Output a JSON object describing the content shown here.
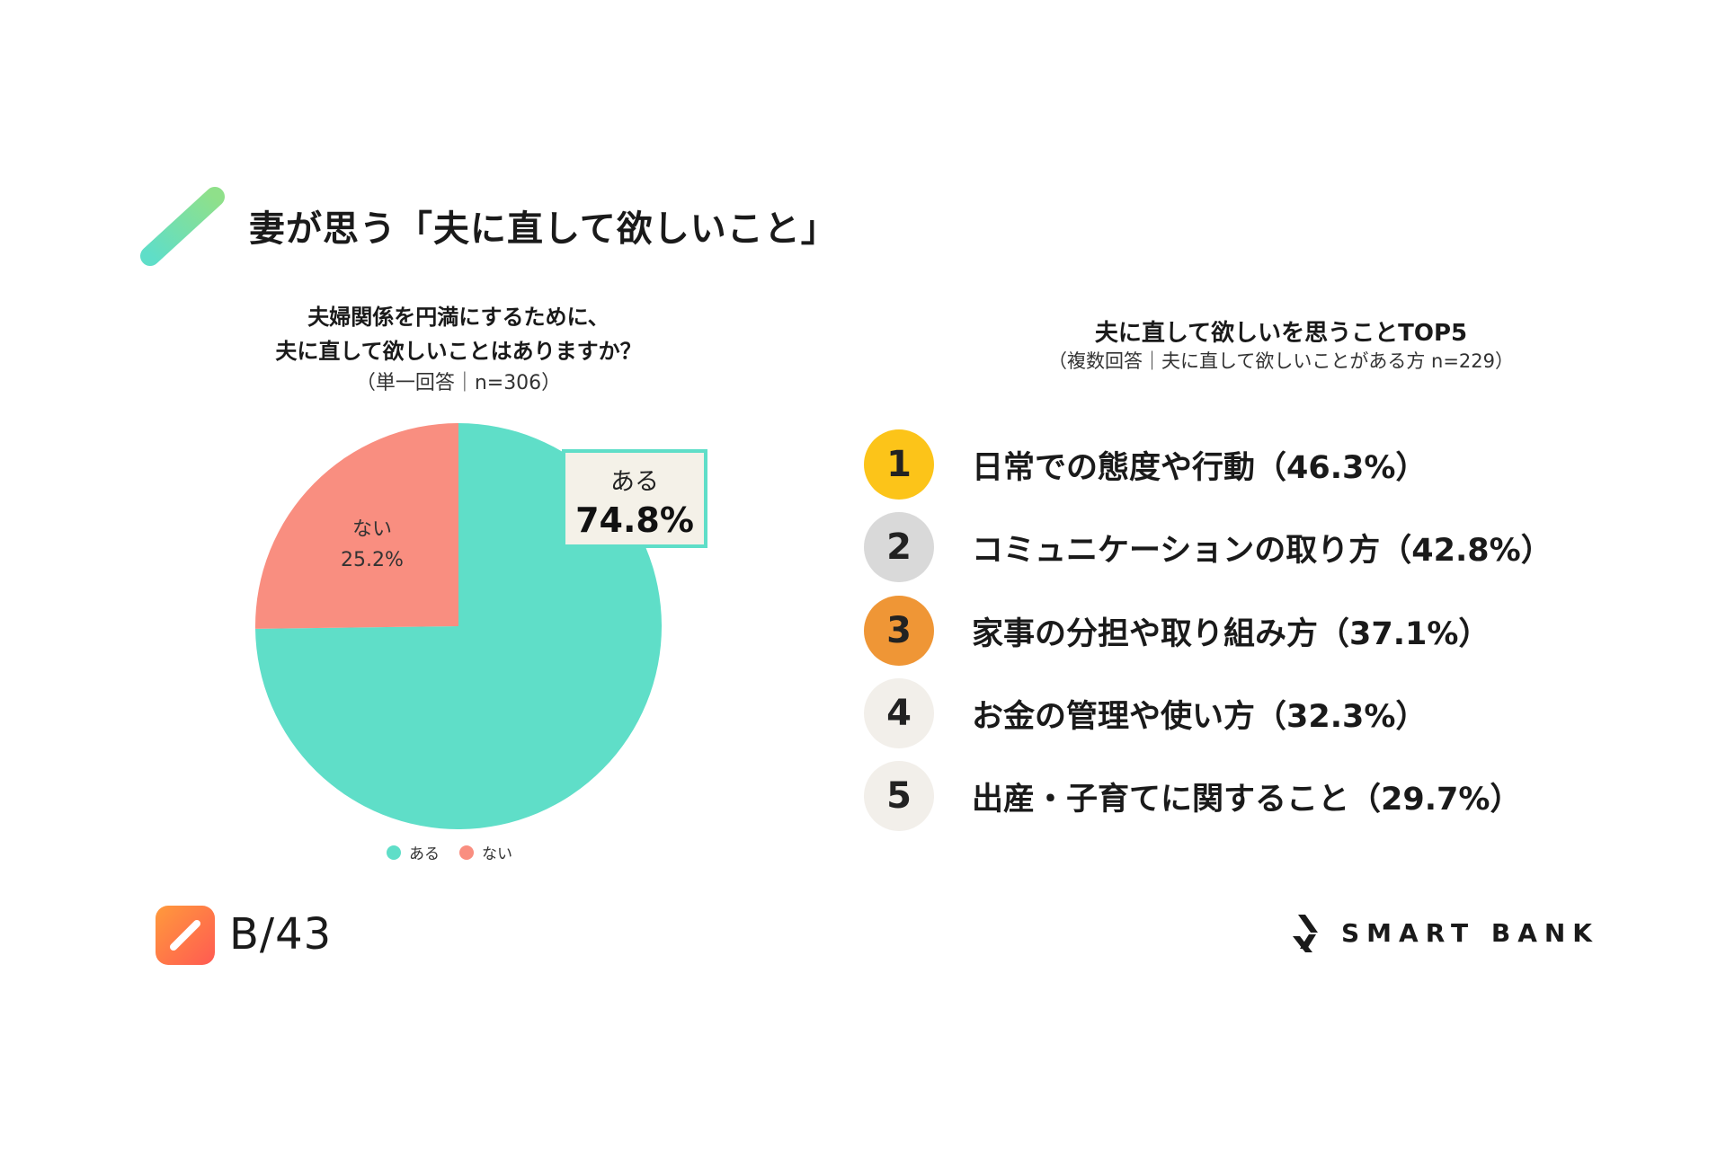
{
  "header": {
    "title": "妻が思う「夫に直して欲しいこと」",
    "accent_color": "#5fdec8"
  },
  "left_chart": {
    "question_line1": "夫婦関係を円満にするために、",
    "question_line2": "夫に直して欲しいことはありますか？",
    "note": "（単一回答｜n=306）",
    "callout_label": "ある",
    "callout_value": "74.8%",
    "no_label": "ない",
    "no_value": "25.2%",
    "legend": [
      {
        "label": "ある",
        "color": "#5fdec8"
      },
      {
        "label": "ない",
        "color": "#f98e80"
      }
    ]
  },
  "right_list": {
    "title": "夫に直して欲しいを思うことTOP5",
    "note": "（複数回答｜夫に直して欲しいことがある方 n=229）",
    "items": [
      {
        "rank": "1",
        "text": "日常での態度や行動（46.3%）",
        "color": "#fcc419"
      },
      {
        "rank": "2",
        "text": "コミュニケーションの取り方（42.8%）",
        "color": "#d9d9d9"
      },
      {
        "rank": "3",
        "text": "家事の分担や取り組み方（37.1%）",
        "color": "#ef9636"
      },
      {
        "rank": "4",
        "text": "お金の管理や使い方（32.3%）",
        "color": "#f2efea"
      },
      {
        "rank": "5",
        "text": "出産・子育てに関すること（29.7%）",
        "color": "#f2efea"
      }
    ]
  },
  "footer": {
    "b43_text": "B/43",
    "smartbank_text": "SMART BANK"
  },
  "chart_data": [
    {
      "type": "pie",
      "title": "夫婦関係を円満にするために、夫に直して欲しいことはありますか？",
      "subtitle": "（単一回答｜n=306）",
      "categories": [
        "ある",
        "ない"
      ],
      "values": [
        74.8,
        25.2
      ],
      "unit": "%",
      "colors": [
        "#5fdec8",
        "#f98e80"
      ],
      "legend_position": "bottom"
    },
    {
      "type": "table",
      "title": "夫に直して欲しいを思うことTOP5",
      "subtitle": "（複数回答｜夫に直して欲しいことがある方 n=229）",
      "categories": [
        "日常での態度や行動",
        "コミュニケーションの取り方",
        "家事の分担や取り組み方",
        "お金の管理や使い方",
        "出産・子育てに関すること"
      ],
      "values": [
        46.3,
        42.8,
        37.1,
        32.3,
        29.7
      ],
      "unit": "%"
    }
  ]
}
